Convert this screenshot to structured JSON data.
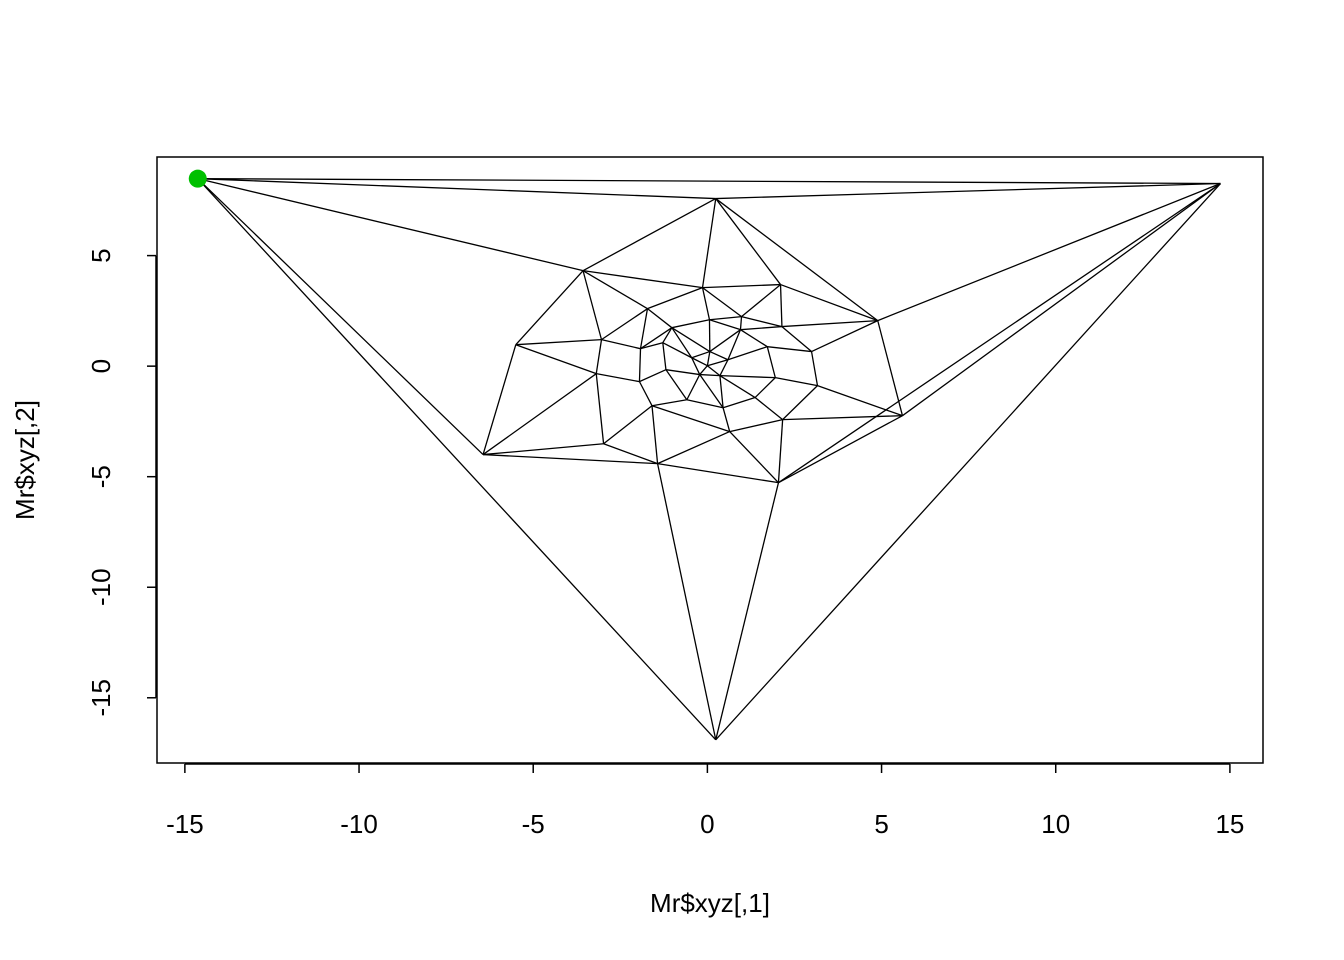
{
  "chart_data": {
    "type": "mesh",
    "x_label": "Mr$xyz[,1]",
    "y_label": "Mr$xyz[,2]",
    "xlim": [
      -15.8,
      15.95
    ],
    "ylim": [
      -17.95,
      9.46
    ],
    "xticks": [
      -15,
      -10,
      -5,
      0,
      5,
      10,
      15
    ],
    "yticks": [
      -15,
      -10,
      -5,
      0,
      5
    ],
    "x": [
      -14.63,
      14.73,
      0.24,
      0.24,
      -3.57,
      -5.5,
      -6.44,
      -1.43,
      2.04,
      5.6,
      4.89,
      2.1,
      -0.14,
      -1.72,
      -3.04,
      -3.19,
      -2.98,
      0.64,
      2.16,
      3.16,
      2.99,
      2.14,
      0.98,
      -1.59,
      -1.95,
      -1.92,
      -1.02,
      0.06,
      0.95,
      1.72,
      1.95,
      1.37,
      0.45,
      -0.59,
      -1.19,
      -1.28,
      0.07,
      0.59,
      0.36,
      -0.22,
      -0.45,
      0
    ],
    "y": [
      8.48,
      8.26,
      7.58,
      -16.9,
      4.32,
      0.97,
      -4.0,
      -4.41,
      -5.27,
      -2.24,
      2.06,
      3.69,
      3.55,
      2.6,
      1.2,
      -0.34,
      -3.51,
      -2.96,
      -2.42,
      -0.88,
      0.66,
      1.79,
      2.24,
      -1.79,
      -0.7,
      0.79,
      1.74,
      2.1,
      1.65,
      0.88,
      -0.52,
      -1.42,
      -1.88,
      -1.52,
      -0.16,
      1.06,
      0.66,
      0.29,
      -0.43,
      -0.38,
      0.38,
      0.02
    ],
    "edges": [
      [
        0,
        1
      ],
      [
        0,
        2
      ],
      [
        0,
        4
      ],
      [
        0,
        6
      ],
      [
        0,
        3
      ],
      [
        1,
        2
      ],
      [
        1,
        10
      ],
      [
        1,
        9
      ],
      [
        1,
        8
      ],
      [
        1,
        3
      ],
      [
        2,
        4
      ],
      [
        2,
        10
      ],
      [
        2,
        12
      ],
      [
        2,
        11
      ],
      [
        4,
        5
      ],
      [
        4,
        13
      ],
      [
        4,
        12
      ],
      [
        4,
        14
      ],
      [
        5,
        6
      ],
      [
        5,
        14
      ],
      [
        5,
        15
      ],
      [
        6,
        15
      ],
      [
        6,
        16
      ],
      [
        6,
        7
      ],
      [
        7,
        3
      ],
      [
        7,
        16
      ],
      [
        7,
        23
      ],
      [
        7,
        17
      ],
      [
        7,
        8
      ],
      [
        8,
        3
      ],
      [
        8,
        17
      ],
      [
        8,
        18
      ],
      [
        8,
        9
      ],
      [
        9,
        10
      ],
      [
        9,
        18
      ],
      [
        9,
        19
      ],
      [
        10,
        11
      ],
      [
        10,
        21
      ],
      [
        10,
        20
      ],
      [
        11,
        12
      ],
      [
        11,
        21
      ],
      [
        11,
        22
      ],
      [
        12,
        13
      ],
      [
        12,
        22
      ],
      [
        12,
        27
      ],
      [
        13,
        14
      ],
      [
        13,
        26
      ],
      [
        13,
        25
      ],
      [
        14,
        15
      ],
      [
        14,
        25
      ],
      [
        15,
        16
      ],
      [
        15,
        24
      ],
      [
        16,
        23
      ],
      [
        17,
        18
      ],
      [
        17,
        32
      ],
      [
        17,
        23
      ],
      [
        18,
        19
      ],
      [
        18,
        31
      ],
      [
        19,
        20
      ],
      [
        19,
        30
      ],
      [
        20,
        21
      ],
      [
        20,
        29
      ],
      [
        21,
        22
      ],
      [
        21,
        28
      ],
      [
        22,
        27
      ],
      [
        22,
        28
      ],
      [
        23,
        24
      ],
      [
        23,
        33
      ],
      [
        24,
        25
      ],
      [
        24,
        34
      ],
      [
        25,
        26
      ],
      [
        25,
        35
      ],
      [
        26,
        27
      ],
      [
        27,
        28
      ],
      [
        28,
        29
      ],
      [
        29,
        30
      ],
      [
        30,
        31
      ],
      [
        31,
        32
      ],
      [
        32,
        33
      ],
      [
        33,
        34
      ],
      [
        34,
        35
      ],
      [
        35,
        26
      ],
      [
        26,
        36
      ],
      [
        27,
        36
      ],
      [
        28,
        37
      ],
      [
        29,
        37
      ],
      [
        30,
        38
      ],
      [
        31,
        38
      ],
      [
        32,
        38
      ],
      [
        33,
        39
      ],
      [
        34,
        39
      ],
      [
        35,
        40
      ],
      [
        26,
        40
      ],
      [
        36,
        37
      ],
      [
        37,
        38
      ],
      [
        38,
        39
      ],
      [
        39,
        40
      ],
      [
        40,
        36
      ],
      [
        36,
        41
      ],
      [
        37,
        41
      ],
      [
        38,
        41
      ],
      [
        39,
        41
      ],
      [
        40,
        41
      ],
      [
        28,
        36
      ],
      [
        32,
        39
      ]
    ],
    "edge_color": "#000000",
    "highlight": {
      "node": 0,
      "color": "#00c000"
    }
  }
}
